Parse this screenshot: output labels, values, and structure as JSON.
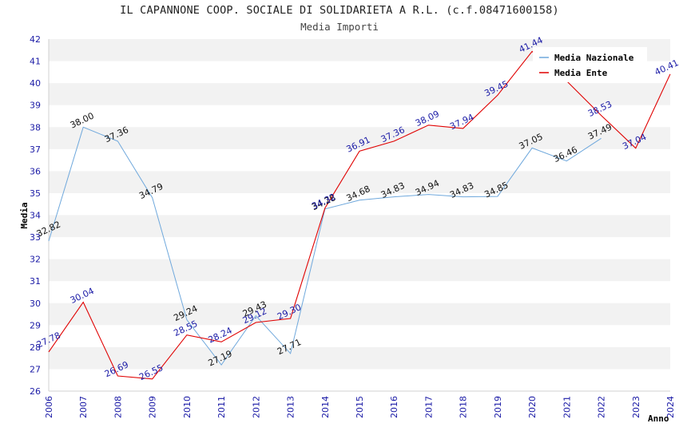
{
  "title": "IL CAPANNONE COOP. SOCIALE DI SOLIDARIETA A R.L. (c.f.08471600158)",
  "subtitle": "Media Importi",
  "colors": {
    "nazionale": "#6fa8dc",
    "ente": "#e00000",
    "band": "#f2f2f2",
    "tick": "#1a1aa6"
  },
  "chart_data": {
    "type": "line",
    "title": "IL CAPANNONE COOP. SOCIALE DI SOLIDARIETA A R.L. (c.f.08471600158)",
    "subtitle": "Media Importi",
    "xlabel": "Anno",
    "ylabel": "Media",
    "ylim": [
      26,
      42
    ],
    "yticks": [
      "26",
      "27",
      "28",
      "29",
      "30",
      "31",
      "32",
      "33",
      "34",
      "35",
      "36",
      "37",
      "38",
      "39",
      "40",
      "41",
      "42"
    ],
    "categories": [
      "2006",
      "2007",
      "2008",
      "2009",
      "2010",
      "2011",
      "2012",
      "2013",
      "2014",
      "2015",
      "2016",
      "2017",
      "2018",
      "2019",
      "2020",
      "2021",
      "2022",
      "2023",
      "2024"
    ],
    "grid": "horizontal alternating bands",
    "legend_position": "top-right",
    "series": [
      {
        "name": "Media Nazionale",
        "color": "#6fa8dc",
        "values": [
          32.82,
          38.0,
          37.36,
          34.79,
          29.24,
          27.19,
          29.43,
          27.71,
          34.28,
          34.68,
          34.83,
          34.94,
          34.83,
          34.85,
          37.05,
          36.46,
          37.49,
          null,
          null
        ],
        "labels": [
          "32.82",
          "38.00",
          "37.36",
          "34.79",
          "29.24",
          "27.19",
          "29.43",
          "27.71",
          "34.28",
          "34.68",
          "34.83",
          "34.94",
          "34.83",
          "34.85",
          "37.05",
          "36.46",
          "37.49",
          "",
          ""
        ]
      },
      {
        "name": "Media Ente",
        "color": "#e00000",
        "values": [
          27.78,
          30.04,
          26.69,
          26.55,
          28.55,
          28.24,
          29.12,
          29.3,
          34.32,
          36.91,
          37.36,
          38.09,
          37.94,
          39.45,
          41.44,
          40.1,
          38.53,
          37.04,
          40.41
        ],
        "labels": [
          "27.78",
          "30.04",
          "26.69",
          "26.55",
          "28.55",
          "28.24",
          "29.12",
          "29.30",
          "34.32",
          "36.91",
          "37.36",
          "38.09",
          "37.94",
          "39.45",
          "41.44",
          "",
          "38.53",
          "37.04",
          "40.41"
        ]
      }
    ]
  }
}
